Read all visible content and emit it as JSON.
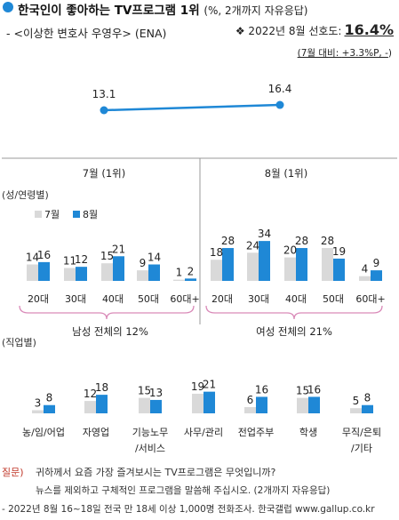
{
  "header": {
    "title": "한국인이 좋아하는 TV프로그램 1위",
    "title_note": "(%, 2개까지 자유응답)",
    "subtitle": "- <이상한 변호사 우영우> (ENA)",
    "preference_prefix": "❖ 2022년 8월 선호도:",
    "preference_value": "16.4%",
    "change_label": "(7월 대비: ",
    "change_value": "+3.3%P, -",
    "change_suffix": ")"
  },
  "legend": {
    "jul": "7월",
    "aug": "8월"
  },
  "section_labels": {
    "gender_age": "(성/연령별)",
    "job": "(직업별)"
  },
  "group_totals": {
    "male": "남성 전체의 12%",
    "female": "여성 전체의 21%"
  },
  "footer": {
    "q_label": "질문)",
    "q_line1": "귀하께서 요즘 가장 즐겨보시는 TV프로그램은 무엇입니까?",
    "q_line2": "뉴스를 제외하고 구체적인 프로그램을 말씀해 주십시오. (2개까지 자유응답)",
    "source": "- 2022년 8월 16~18일 전국 만 18세 이상 1,000명 전화조사. 한국갤럽 www.gallup.co.kr"
  },
  "colors": {
    "jul": "#d9d9d9",
    "aug": "#1f88d6",
    "line": "#1f88d6",
    "brace": "#d98ab8"
  },
  "chart_data": [
    {
      "type": "line",
      "categories": [
        "7월 (1위)",
        "8월 (1위)"
      ],
      "values": [
        13.1,
        16.4
      ]
    },
    {
      "type": "bar",
      "categories": [
        "20대",
        "30대",
        "40대",
        "50대",
        "60대+",
        "20대",
        "30대",
        "40대",
        "50대",
        "60대+"
      ],
      "series": [
        {
          "name": "7월",
          "values": [
            14,
            11,
            15,
            9,
            1,
            18,
            24,
            20,
            28,
            4
          ]
        },
        {
          "name": "8월",
          "values": [
            16,
            12,
            21,
            14,
            2,
            28,
            34,
            28,
            19,
            9
          ]
        }
      ]
    },
    {
      "type": "bar",
      "categories": [
        "농/임/어업",
        "자영업",
        "기능노무/서비스",
        "사무/관리",
        "전업주부",
        "학생",
        "무직/은퇴/기타"
      ],
      "series": [
        {
          "name": "7월",
          "values": [
            3,
            12,
            15,
            19,
            6,
            15,
            5
          ]
        },
        {
          "name": "8월",
          "values": [
            8,
            18,
            13,
            21,
            16,
            16,
            8
          ]
        }
      ]
    }
  ]
}
